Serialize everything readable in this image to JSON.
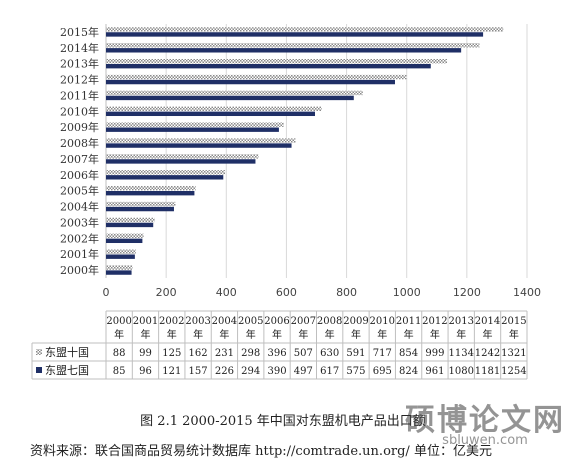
{
  "chart_data": {
    "type": "bar",
    "orientation": "horizontal",
    "categories": [
      "2000年",
      "2001年",
      "2002年",
      "2003年",
      "2004年",
      "2005年",
      "2006年",
      "2007年",
      "2008年",
      "2009年",
      "2010年",
      "2011年",
      "2012年",
      "2013年",
      "2014年",
      "2015年"
    ],
    "table_headers": [
      [
        "2000",
        "年"
      ],
      [
        "2001",
        "年"
      ],
      [
        "2002",
        "年"
      ],
      [
        "2003",
        "年"
      ],
      [
        "2004",
        "年"
      ],
      [
        "2005",
        "年"
      ],
      [
        "2006",
        "年"
      ],
      [
        "2007",
        "年"
      ],
      [
        "2008",
        "年"
      ],
      [
        "2009",
        "年"
      ],
      [
        "2010",
        "年"
      ],
      [
        "2011",
        "年"
      ],
      [
        "2012",
        "年"
      ],
      [
        "2013",
        "年"
      ],
      [
        "2014",
        "年"
      ],
      [
        "2015",
        "年"
      ]
    ],
    "series": [
      {
        "name": "东盟十国",
        "color": "#999999",
        "pattern": "checker",
        "values": [
          88,
          99,
          125,
          162,
          231,
          298,
          396,
          507,
          630,
          591,
          717,
          854,
          999,
          1134,
          1242,
          1321
        ]
      },
      {
        "name": "东盟七国",
        "color": "#1f2f66",
        "pattern": "solid",
        "values": [
          85,
          96,
          121,
          157,
          226,
          294,
          390,
          497,
          617,
          575,
          695,
          824,
          961,
          1080,
          1181,
          1254
        ]
      }
    ],
    "xlim": [
      0,
      1400
    ],
    "xticks": [
      0,
      200,
      400,
      600,
      800,
      1000,
      1200,
      1400
    ],
    "grid": true,
    "legend": "data-table"
  },
  "caption": "图 2.1 2000-2015 年中国对东盟机电产品出口额",
  "source_text": "资料来源：联合国商品贸易统计数据库 http://comtrade.un.org/ 单位：亿美元",
  "watermark": {
    "main": "硕博论文网",
    "sub": "sbluwen.com"
  }
}
